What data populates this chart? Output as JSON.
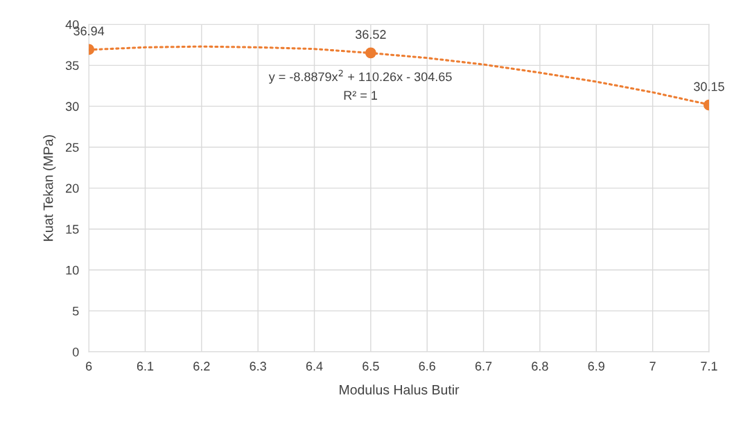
{
  "chart_data": {
    "type": "scatter",
    "xlabel": "Modulus Halus Butir",
    "ylabel": "Kuat Tekan (MPa)",
    "xlim": [
      6,
      7.1
    ],
    "xticks": [
      6,
      6.1,
      6.2,
      6.3,
      6.4,
      6.5,
      6.6,
      6.7,
      6.8,
      6.9,
      7,
      7.1
    ],
    "ylim": [
      0,
      40
    ],
    "yticks": [
      0,
      5,
      10,
      15,
      20,
      25,
      30,
      35,
      40
    ],
    "grid": true,
    "legend": false,
    "series": [
      {
        "type": "line",
        "color": "#ed7d31",
        "line_style": "dotted",
        "marker": "none",
        "x": [
          6.0,
          6.1,
          6.2,
          6.3,
          6.4,
          6.5,
          6.6,
          6.7,
          6.8,
          6.9,
          7.0,
          7.1
        ],
        "values": [
          36.9,
          37.2,
          37.3,
          37.2,
          37.0,
          36.5,
          35.9,
          35.1,
          34.1,
          33.0,
          31.7,
          30.2
        ]
      },
      {
        "color": "#ed7d31",
        "marker": "circle",
        "x": [
          6,
          6.5,
          7.1
        ],
        "values": [
          36.94,
          36.52,
          30.15
        ],
        "value_labels": [
          "36.94",
          "36.52",
          "30.15"
        ]
      }
    ],
    "annotations": [
      "y = -8.8879x$^{2}$ + 110.26x - 304.65",
      "R² = 1"
    ]
  }
}
